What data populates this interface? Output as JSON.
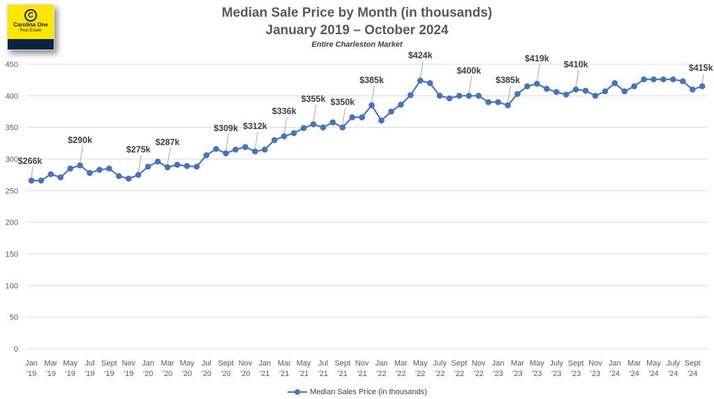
{
  "logo": {
    "mark": "C",
    "name": "Carolina One",
    "sub": "Real Estate"
  },
  "chart_data": {
    "type": "line",
    "title": "Median Sale Price by Month (in thousands)",
    "subtitle": "January 2019 – October 2024",
    "caption": "Entire Charleston Market",
    "xlabel": "",
    "ylabel": "",
    "ylim": [
      0,
      450
    ],
    "yticks": [
      0,
      50,
      100,
      150,
      200,
      250,
      300,
      350,
      400,
      450
    ],
    "grid": true,
    "legend_position": "bottom",
    "xtick_labels": [
      [
        "Jan",
        "'19"
      ],
      [
        "Mar",
        "'19"
      ],
      [
        "May",
        "'19"
      ],
      [
        "Jul",
        "'19"
      ],
      [
        "Sept",
        "'19"
      ],
      [
        "Nov",
        "'19"
      ],
      [
        "Jan",
        "'20"
      ],
      [
        "Mar",
        "'20"
      ],
      [
        "May",
        "'20"
      ],
      [
        "Jul",
        "'20"
      ],
      [
        "Sept",
        "'20"
      ],
      [
        "Nov",
        "'20"
      ],
      [
        "Jan",
        "'21"
      ],
      [
        "Mar",
        "'21"
      ],
      [
        "May",
        "'21"
      ],
      [
        "Jul",
        "'21"
      ],
      [
        "Sept",
        "'21"
      ],
      [
        "Nov",
        "'21"
      ],
      [
        "Jan",
        "'22"
      ],
      [
        "Mar",
        "'22"
      ],
      [
        "May",
        "'22"
      ],
      [
        "July",
        "'22"
      ],
      [
        "Sept",
        "'22"
      ],
      [
        "Nov",
        "'22"
      ],
      [
        "Jan",
        "'23"
      ],
      [
        "Mar",
        "'23"
      ],
      [
        "May",
        "'23"
      ],
      [
        "July",
        "'23"
      ],
      [
        "Sept",
        "'23"
      ],
      [
        "Nov",
        "'23"
      ],
      [
        "Jan",
        "'24"
      ],
      [
        "Mar",
        "'24"
      ],
      [
        "May",
        "'24"
      ],
      [
        "July",
        "'24"
      ],
      [
        "Sept",
        "'24"
      ]
    ],
    "series": [
      {
        "name": "Median Sales Price (in thousands)",
        "color": "#4472c4",
        "values": [
          266,
          266,
          276,
          271,
          285,
          290,
          278,
          283,
          285,
          273,
          269,
          275,
          288,
          296,
          287,
          291,
          289,
          288,
          306,
          316,
          309,
          315,
          319,
          312,
          315,
          330,
          336,
          341,
          349,
          355,
          350,
          358,
          350,
          366,
          366,
          385,
          361,
          375,
          386,
          401,
          424,
          420,
          400,
          396,
          400,
          400,
          400,
          390,
          390,
          385,
          403,
          415,
          419,
          411,
          406,
          402,
          410,
          408,
          400,
          407,
          420,
          407,
          415,
          426,
          426,
          426,
          426,
          423,
          410,
          415
        ]
      }
    ],
    "data_labels": [
      {
        "index": 0,
        "text": "$266k"
      },
      {
        "index": 5,
        "text": "$290k"
      },
      {
        "index": 11,
        "text": "$275k"
      },
      {
        "index": 14,
        "text": "$287k"
      },
      {
        "index": 20,
        "text": "$309k"
      },
      {
        "index": 23,
        "text": "$312k"
      },
      {
        "index": 26,
        "text": "$336k"
      },
      {
        "index": 29,
        "text": "$355k"
      },
      {
        "index": 32,
        "text": "$350k"
      },
      {
        "index": 35,
        "text": "$385k"
      },
      {
        "index": 40,
        "text": "$424k"
      },
      {
        "index": 45,
        "text": "$400k"
      },
      {
        "index": 49,
        "text": "$385k"
      },
      {
        "index": 52,
        "text": "$419k"
      },
      {
        "index": 56,
        "text": "$410k"
      },
      {
        "index": 69,
        "text": "$415k"
      }
    ]
  }
}
